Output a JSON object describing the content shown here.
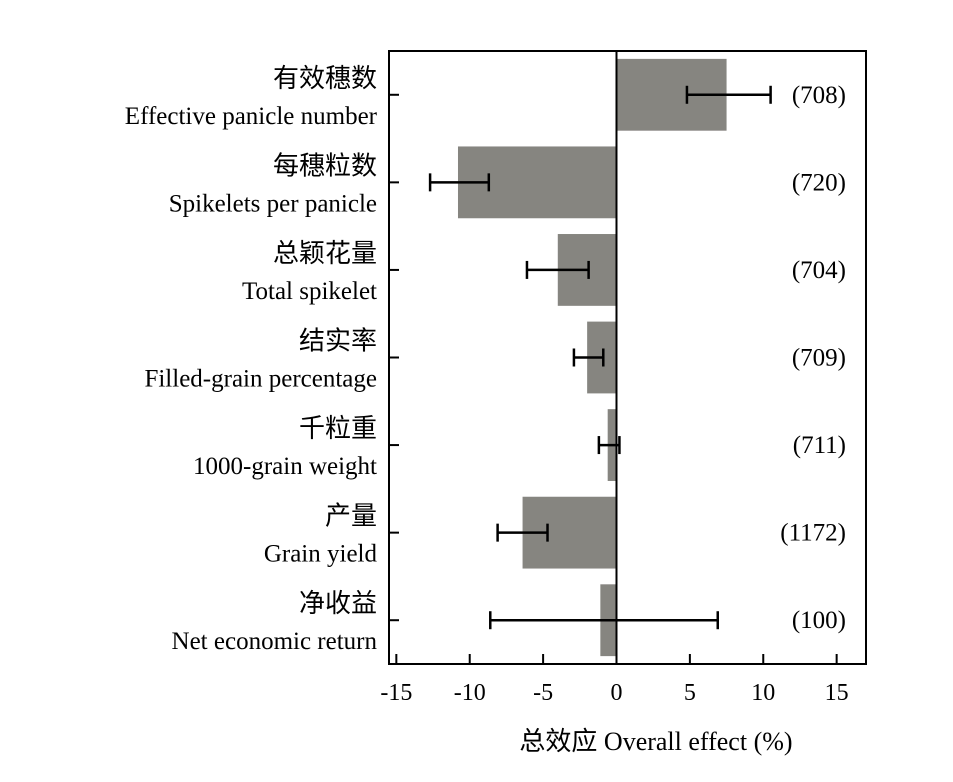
{
  "chart_data": {
    "type": "bar",
    "orientation": "horizontal",
    "categories": [
      {
        "cn": "有效穗数",
        "en": "Effective panicle number"
      },
      {
        "cn": "每穗粒数",
        "en": "Spikelets per panicle"
      },
      {
        "cn": "总颖花量",
        "en": "Total spikelet"
      },
      {
        "cn": "结实率",
        "en": "Filled-grain percentage"
      },
      {
        "cn": "千粒重",
        "en": "1000-grain weight"
      },
      {
        "cn": "产量",
        "en": "Grain yield"
      },
      {
        "cn": "净收益",
        "en": "Net economic return"
      }
    ],
    "values": [
      7.5,
      -10.8,
      -4.0,
      -2.0,
      -0.6,
      -6.4,
      -1.1
    ],
    "ci_low": [
      4.8,
      -12.7,
      -6.1,
      -2.9,
      -1.2,
      -8.1,
      -8.6
    ],
    "ci_high": [
      10.5,
      -8.7,
      -1.9,
      -0.9,
      0.2,
      -4.7,
      6.9
    ],
    "n_labels": [
      "(708)",
      "(720)",
      "(704)",
      "(709)",
      "(711)",
      "(1172)",
      "(100)"
    ],
    "xlim": [
      -15.5,
      17.0
    ],
    "xticks": [
      "-15",
      "-10",
      "-5",
      "0",
      "5",
      "10",
      "15"
    ],
    "xlabel": "总效应 Overall effect (%)",
    "bar_color": "#868580",
    "grid": false
  }
}
